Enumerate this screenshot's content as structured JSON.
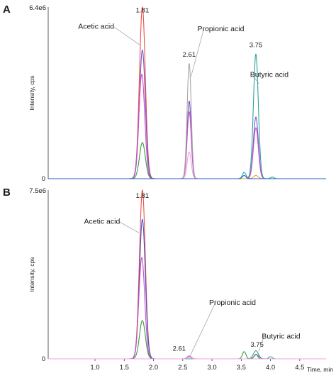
{
  "chart_data": [
    {
      "type": "line",
      "panel_label": "A",
      "ylabel": "Intensity, cps",
      "xlabel": "",
      "y_top_label": "6.4e6",
      "y_zero_label": "0",
      "xlim": [
        0.2,
        4.95
      ],
      "ylim": [
        0,
        6400000
      ],
      "x_ticks": [],
      "series": [
        {
          "color": "#e8504a",
          "peaks": [
            {
              "rt": 1.81,
              "height": 6400000,
              "sigma": 0.05
            }
          ]
        },
        {
          "color": "#7a52c6",
          "peaks": [
            {
              "rt": 1.81,
              "height": 4800000,
              "sigma": 0.05
            },
            {
              "rt": 2.61,
              "height": 2900000,
              "sigma": 0.035
            },
            {
              "rt": 3.75,
              "height": 2300000,
              "sigma": 0.042
            }
          ]
        },
        {
          "color": "#c354c8",
          "peaks": [
            {
              "rt": 1.8,
              "height": 3900000,
              "sigma": 0.05
            },
            {
              "rt": 2.61,
              "height": 2500000,
              "sigma": 0.035
            },
            {
              "rt": 3.75,
              "height": 1900000,
              "sigma": 0.042
            }
          ]
        },
        {
          "color": "#3a9a3a",
          "peaks": [
            {
              "rt": 1.81,
              "height": 1350000,
              "sigma": 0.05
            }
          ]
        },
        {
          "color": "#a8a8a8",
          "peaks": [
            {
              "rt": 2.61,
              "height": 4300000,
              "sigma": 0.035
            }
          ]
        },
        {
          "color": "#f0a0e8",
          "peaks": [
            {
              "rt": 2.61,
              "height": 1000000,
              "sigma": 0.035
            }
          ]
        },
        {
          "color": "#2fa0a0",
          "peaks": [
            {
              "rt": 3.75,
              "height": 4650000,
              "sigma": 0.042
            },
            {
              "rt": 3.55,
              "height": 240000,
              "sigma": 0.03
            },
            {
              "rt": 4.03,
              "height": 60000,
              "sigma": 0.03
            }
          ]
        },
        {
          "color": "#e8a03a",
          "peaks": [
            {
              "rt": 3.75,
              "height": 120000,
              "sigma": 0.04
            }
          ]
        },
        {
          "color": "#3060c0",
          "peaks": [
            {
              "rt": 3.55,
              "height": 120000,
              "sigma": 0.03
            }
          ]
        }
      ],
      "peak_labels": [
        {
          "text": "1.81",
          "x": 1.81,
          "y": 6200000
        },
        {
          "text": "2.61",
          "x": 2.61,
          "y": 4550000
        },
        {
          "text": "3.75",
          "x": 3.75,
          "y": 4900000
        }
      ],
      "annotations": [
        {
          "text": "Acetic acid",
          "x": 1.02,
          "y": 5600000,
          "arrow_x": 1.76,
          "arrow_y": 5000000
        },
        {
          "text": "Propionic acid",
          "x": 3.15,
          "y": 5500000,
          "arrow_x": 2.64,
          "arrow_y": 3800000
        },
        {
          "text": "Butyric acid",
          "x": 3.98,
          "y": 3800000,
          "arrow_x": 3.8,
          "arrow_y": 3550000
        }
      ]
    },
    {
      "type": "line",
      "panel_label": "B",
      "ylabel": "Intensity, cps",
      "xlabel": "Time, min",
      "y_top_label": "7.5e6",
      "y_zero_label": "0",
      "xlim": [
        0.2,
        4.95
      ],
      "ylim": [
        0,
        7500000
      ],
      "x_ticks": [
        1.0,
        1.5,
        2.0,
        2.5,
        3.0,
        3.5,
        4.0,
        4.5
      ],
      "x_tick_labels": [
        "1.0",
        "1.5",
        "2.0",
        "2.5",
        "3.0",
        "3.5",
        "4.0",
        "4.5"
      ],
      "series": [
        {
          "color": "#e8504a",
          "peaks": [
            {
              "rt": 1.81,
              "height": 7500000,
              "sigma": 0.05
            }
          ]
        },
        {
          "color": "#5050c8",
          "peaks": [
            {
              "rt": 1.81,
              "height": 6200000,
              "sigma": 0.05
            }
          ]
        },
        {
          "color": "#c354c8",
          "peaks": [
            {
              "rt": 1.8,
              "height": 4500000,
              "sigma": 0.05
            },
            {
              "rt": 2.61,
              "height": 130000,
              "sigma": 0.035
            },
            {
              "rt": 3.76,
              "height": 180000,
              "sigma": 0.042
            }
          ]
        },
        {
          "color": "#3a9a3a",
          "peaks": [
            {
              "rt": 1.81,
              "height": 1700000,
              "sigma": 0.05
            },
            {
              "rt": 3.55,
              "height": 320000,
              "sigma": 0.03
            },
            {
              "rt": 3.75,
              "height": 200000,
              "sigma": 0.03
            }
          ]
        },
        {
          "color": "#2fa0a0",
          "peaks": [
            {
              "rt": 3.75,
              "height": 360000,
              "sigma": 0.042
            },
            {
              "rt": 4.0,
              "height": 90000,
              "sigma": 0.03
            }
          ]
        },
        {
          "color": "#a8a8a8",
          "peaks": [
            {
              "rt": 2.61,
              "height": 70000,
              "sigma": 0.035
            }
          ]
        },
        {
          "color": "#f0a0e8",
          "peaks": [
            {
              "rt": 2.61,
              "height": 90000,
              "sigma": 0.035
            }
          ]
        }
      ],
      "peak_labels": [
        {
          "text": "1.81",
          "x": 1.81,
          "y": 7150000
        },
        {
          "text": "2.61",
          "x": 2.44,
          "y": 370000
        },
        {
          "text": "3.75",
          "x": 3.77,
          "y": 530000
        }
      ],
      "annotations": [
        {
          "text": "Acetic acid",
          "x": 1.12,
          "y": 6000000,
          "arrow_x": 1.75,
          "arrow_y": 5600000
        },
        {
          "text": "Propionic acid",
          "x": 3.35,
          "y": 2400000,
          "arrow_x": 2.63,
          "arrow_y": 160000
        },
        {
          "text": "Butyric acid",
          "x": 4.18,
          "y": 900000,
          "arrow_x": 3.8,
          "arrow_y": 330000
        }
      ]
    }
  ]
}
